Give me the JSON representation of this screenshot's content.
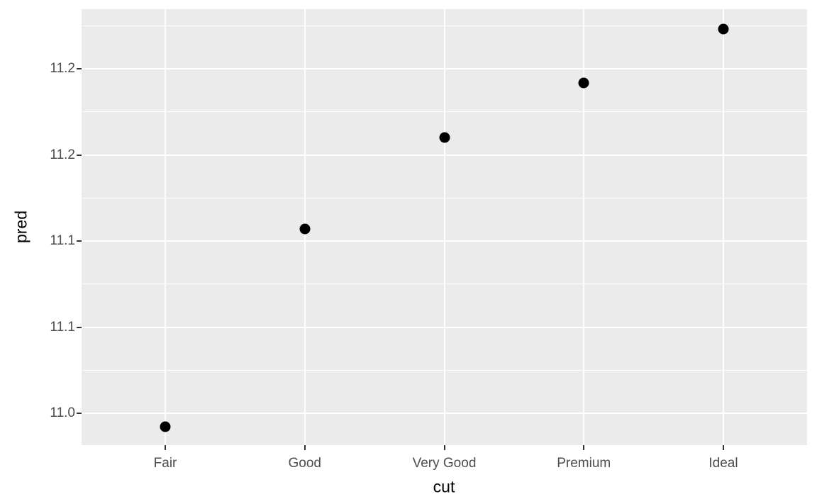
{
  "chart_data": {
    "type": "scatter",
    "title": "",
    "xlabel": "cut",
    "ylabel": "pred",
    "categories": [
      "Fair",
      "Good",
      "Very Good",
      "Premium",
      "Ideal"
    ],
    "series": [
      {
        "name": "pred",
        "values": [
          10.992,
          11.107,
          11.16,
          11.192,
          11.223
        ]
      }
    ],
    "x_axis": {
      "type": "discrete",
      "tick_labels": [
        "Fair",
        "Good",
        "Very Good",
        "Premium",
        "Ideal"
      ]
    },
    "y_axis": {
      "breaks": [
        11.0,
        11.05,
        11.1,
        11.15,
        11.2
      ],
      "labels": [
        "11.0",
        "11.1",
        "11.1",
        "11.2",
        "11.2"
      ],
      "minor_breaks": [
        11.025,
        11.075,
        11.125,
        11.175,
        11.225
      ],
      "ylim": [
        10.9815,
        11.2346
      ]
    },
    "grid": true,
    "legend_position": "none",
    "style": {
      "panel_background": "#EBEBEB",
      "gridline_color": "#FFFFFF",
      "point_color": "#000000",
      "axis_text_color": "#4D4D4D",
      "axis_title_color": "#000000",
      "tick_mark_color": "#333333",
      "outer_background": "#FFFFFF"
    }
  }
}
